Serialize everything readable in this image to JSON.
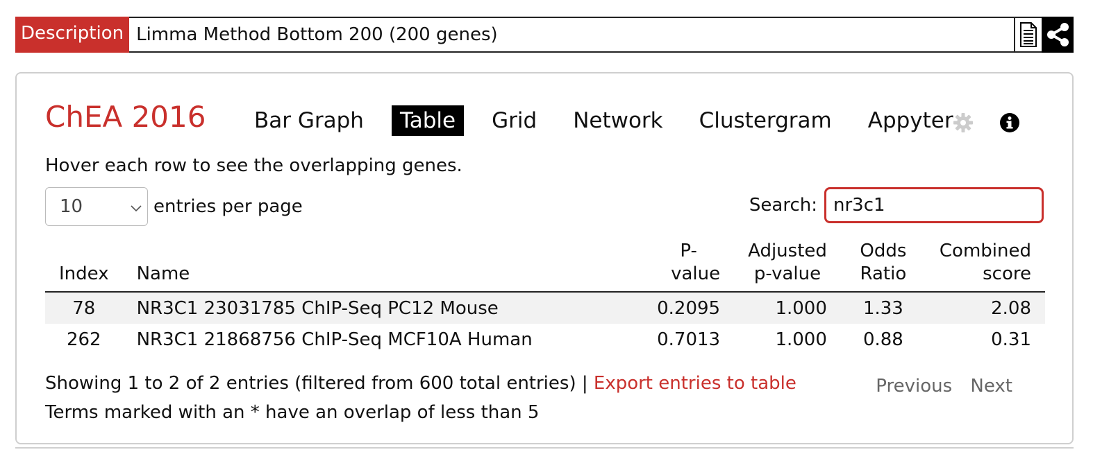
{
  "description": {
    "label": "Description",
    "text": "Limma Method Bottom 200 (200 genes)",
    "icons": [
      "document-icon",
      "share-icon"
    ]
  },
  "library": {
    "title": "ChEA 2016"
  },
  "tabs": [
    {
      "label": "Bar Graph",
      "active": false
    },
    {
      "label": "Table",
      "active": true
    },
    {
      "label": "Grid",
      "active": false
    },
    {
      "label": "Network",
      "active": false
    },
    {
      "label": "Clustergram",
      "active": false
    },
    {
      "label": "Appyter",
      "active": false
    }
  ],
  "tool_icons": [
    "gear-icon",
    "info-icon"
  ],
  "hint": "Hover each row to see the overlapping genes.",
  "per_page": {
    "value": "10",
    "label": "entries per page"
  },
  "search": {
    "label": "Search:",
    "value": "nr3c1"
  },
  "table": {
    "headers": {
      "index": "Index",
      "name": "Name",
      "pvalue_1": "P-",
      "pvalue_2": "value",
      "adj_1": "Adjusted",
      "adj_2": "p-value",
      "odds_1": "Odds",
      "odds_2": "Ratio",
      "comb_1": "Combined",
      "comb_2": "score"
    },
    "rows": [
      {
        "index": "78",
        "name": "NR3C1 23031785 ChIP-Seq PC12 Mouse",
        "pvalue": "0.2095",
        "adj_pvalue": "1.000",
        "odds_ratio": "1.33",
        "combined": "2.08"
      },
      {
        "index": "262",
        "name": "NR3C1 21868756 ChIP-Seq MCF10A Human",
        "pvalue": "0.7013",
        "adj_pvalue": "1.000",
        "odds_ratio": "0.88",
        "combined": "0.31"
      }
    ]
  },
  "footer": {
    "showing": "Showing 1 to 2 of 2 entries (filtered from 600 total entries) | ",
    "export": "Export entries to table",
    "note": "Terms marked with an * have an overlap of less than 5",
    "previous": "Previous",
    "next": "Next"
  },
  "colors": {
    "accent": "#c9302c",
    "active_tab_bg": "#000000"
  }
}
